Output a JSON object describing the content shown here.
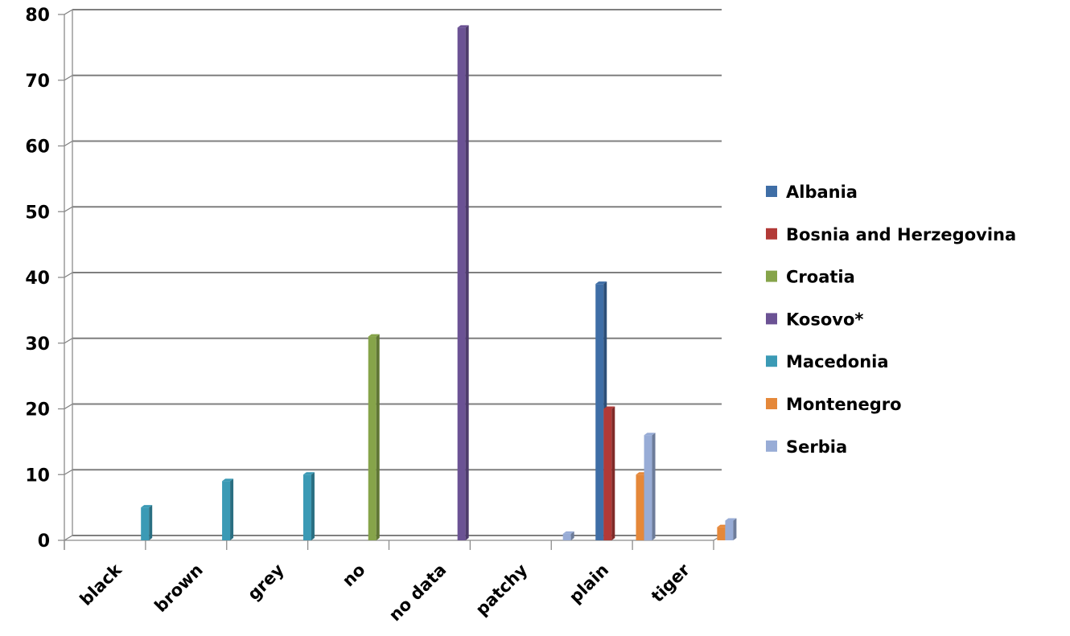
{
  "chart_data": {
    "type": "bar",
    "categories": [
      "black",
      "brown",
      "grey",
      "no",
      "no data",
      "patchy",
      "plain",
      "tiger"
    ],
    "series": [
      {
        "name": "Albania",
        "color": "#3f6ea6",
        "values": [
          0,
          0,
          0,
          0,
          0,
          0,
          39,
          0
        ]
      },
      {
        "name": "Bosnia and Herzegovina",
        "color": "#b23a37",
        "values": [
          0,
          0,
          0,
          0,
          0,
          0,
          20,
          0
        ]
      },
      {
        "name": "Croatia",
        "color": "#86a44a",
        "values": [
          0,
          0,
          0,
          31,
          0,
          0,
          0,
          0
        ]
      },
      {
        "name": "Kosovo*",
        "color": "#6b5294",
        "values": [
          0,
          0,
          0,
          0,
          78,
          0,
          0,
          0
        ]
      },
      {
        "name": "Macedonia",
        "color": "#3b9ab5",
        "values": [
          5,
          9,
          10,
          0,
          0,
          0,
          0,
          0
        ]
      },
      {
        "name": "Montenegro",
        "color": "#e5883a",
        "values": [
          0,
          0,
          0,
          0,
          0,
          0,
          10,
          2
        ]
      },
      {
        "name": "Serbia",
        "color": "#98acd6",
        "values": [
          0,
          0,
          0,
          0,
          0,
          1,
          16,
          3
        ]
      }
    ],
    "ylim": [
      0,
      80
    ],
    "yticks": [
      0,
      10,
      20,
      30,
      40,
      50,
      60,
      70,
      80
    ],
    "grid": true,
    "legend": "right"
  }
}
